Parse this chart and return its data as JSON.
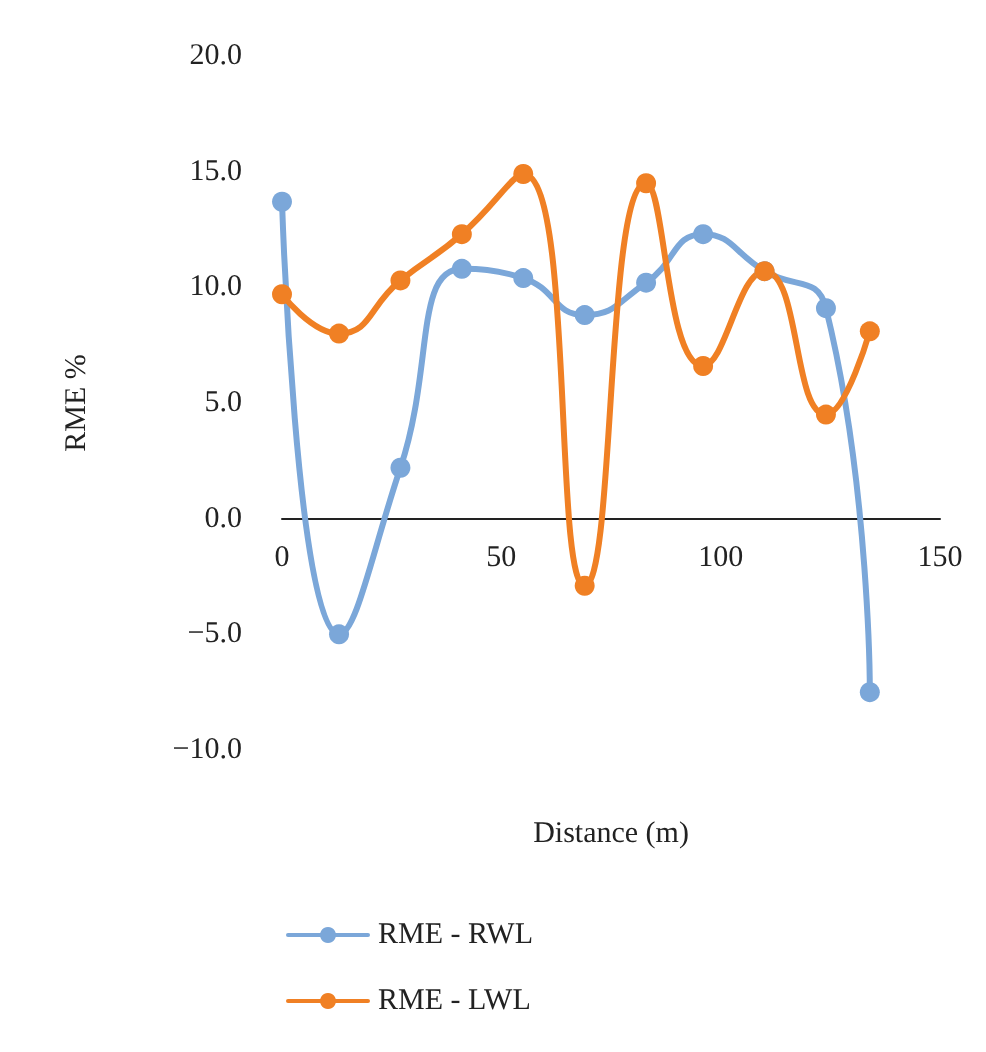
{
  "chart_data": {
    "type": "line",
    "xlabel": "Distance (m)",
    "ylabel": "RME %",
    "xlim": [
      0,
      150
    ],
    "xticks": [
      0,
      50,
      100,
      150
    ],
    "ylim": [
      -10,
      20
    ],
    "yticks": [
      {
        "value": -10,
        "label": "−10.0"
      },
      {
        "value": -5,
        "label": "−5.0"
      },
      {
        "value": 0,
        "label": "0.0"
      },
      {
        "value": 5,
        "label": "5.0"
      },
      {
        "value": 10,
        "label": "10.0"
      },
      {
        "value": 15,
        "label": "15.0"
      },
      {
        "value": 20,
        "label": "20.0"
      }
    ],
    "x": [
      0,
      13,
      27,
      41,
      55,
      69,
      83,
      96,
      110,
      124,
      134
    ],
    "series": [
      {
        "name": "RME - RWL",
        "color": "#7ba7d9",
        "values": [
          13.7,
          -5.0,
          2.2,
          10.8,
          10.4,
          8.8,
          10.2,
          12.3,
          10.7,
          9.1,
          -7.5
        ]
      },
      {
        "name": "RME - LWL",
        "color": "#f08024",
        "values": [
          9.7,
          8.0,
          10.3,
          12.3,
          14.9,
          -2.9,
          14.5,
          6.6,
          10.7,
          4.5,
          8.1
        ]
      }
    ],
    "marker": "circle",
    "line_style": "solid",
    "grid": false,
    "legend": "bottom"
  }
}
